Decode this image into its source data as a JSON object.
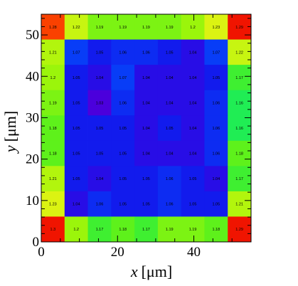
{
  "chart_data": {
    "type": "heatmap",
    "title": "",
    "xlabel_var": "x",
    "xlabel_unit": "[μm]",
    "ylabel_var": "y",
    "ylabel_unit": "[μm]",
    "xlim": [
      0,
      55
    ],
    "ylim": [
      0,
      55
    ],
    "x_ticks": [
      "0",
      "20",
      "40"
    ],
    "y_ticks": [
      "0",
      "10",
      "20",
      "30",
      "40",
      "50"
    ],
    "x_tick_values": [
      0,
      20,
      40
    ],
    "y_tick_values": [
      0,
      10,
      20,
      30,
      40,
      50
    ],
    "cols": 9,
    "rows": 9,
    "cell_size_um": 6.111,
    "color_scale": {
      "min": 1.03,
      "max": 1.29
    },
    "rows_top_to_bottom": [
      [
        "1.28",
        "1.22",
        "1.19",
        "1.19",
        "1.19",
        "1.19",
        "1.2",
        "1.23",
        "1.29"
      ],
      [
        "1.21",
        "1.07",
        "1.05",
        "1.06",
        "1.06",
        "1.05",
        "1.04",
        "1.07",
        "1.22"
      ],
      [
        "1.2",
        "1.05",
        "1.04",
        "1.07",
        "1.04",
        "1.04",
        "1.04",
        "1.05",
        "1.17"
      ],
      [
        "1.19",
        "1.05",
        "1.03",
        "1.06",
        "1.04",
        "1.04",
        "1.04",
        "1.06",
        "1.16"
      ],
      [
        "1.18",
        "1.05",
        "1.05",
        "1.05",
        "1.04",
        "1.05",
        "1.04",
        "1.06",
        "1.16"
      ],
      [
        "1.18",
        "1.05",
        "1.05",
        "1.05",
        "1.04",
        "1.04",
        "1.04",
        "1.06",
        "1.18"
      ],
      [
        "1.21",
        "1.05",
        "1.04",
        "1.05",
        "1.05",
        "1.06",
        "1.05",
        "1.04",
        "1.17"
      ],
      [
        "1.23",
        "1.04",
        "1.06",
        "1.05",
        "1.05",
        "1.06",
        "1.05",
        "1.05",
        "1.21"
      ],
      [
        "1.3",
        "1.2",
        "1.17",
        "1.18",
        "1.17",
        "1.19",
        "1.19",
        "1.18",
        "1.29"
      ]
    ]
  }
}
